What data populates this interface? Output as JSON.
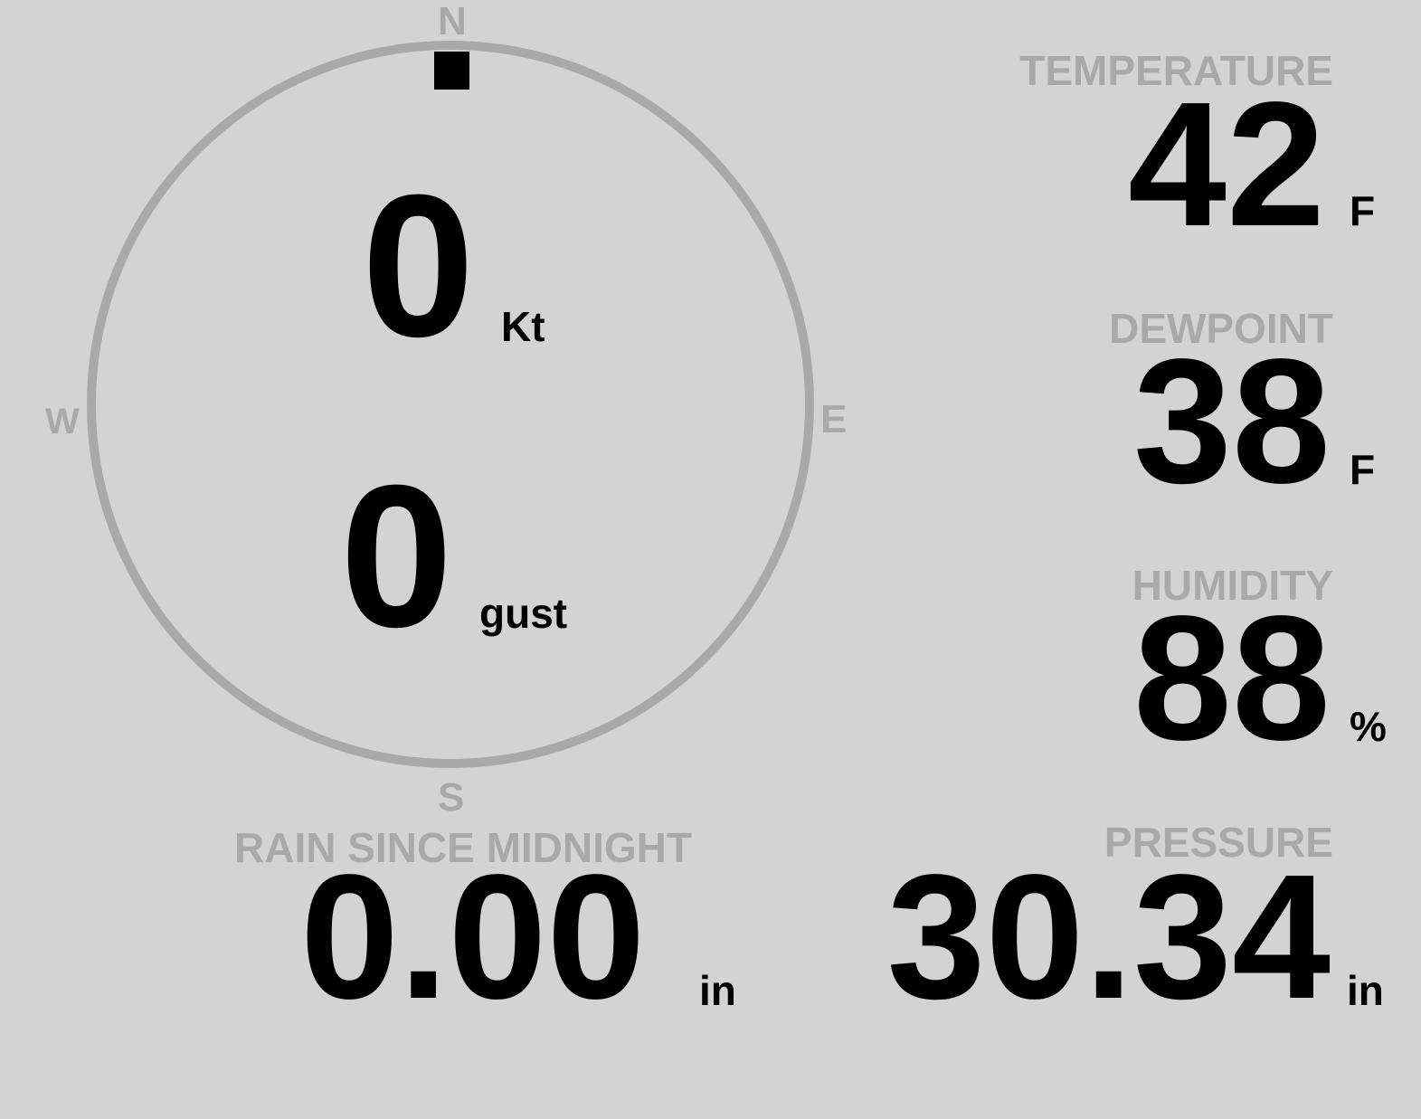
{
  "compass": {
    "north": "N",
    "south": "S",
    "east": "E",
    "west": "W",
    "direction_deg": 0,
    "ring_color": "#a9a9a9"
  },
  "wind": {
    "speed": "0",
    "speed_unit": "Kt",
    "gust": "0",
    "gust_unit": "gust"
  },
  "temperature": {
    "label": "TEMPERATURE",
    "value": "42",
    "unit": "F"
  },
  "dewpoint": {
    "label": "DEWPOINT",
    "value": "38",
    "unit": "F"
  },
  "humidity": {
    "label": "HUMIDITY",
    "value": "88",
    "unit": "%"
  },
  "rain": {
    "label": "RAIN SINCE MIDNIGHT",
    "value": "0.00",
    "unit": "in"
  },
  "pressure": {
    "label": "PRESSURE",
    "value": "30.34",
    "unit": "in"
  },
  "colors": {
    "background": "#d3d3d3",
    "label": "#a9a9a9",
    "value": "#000000"
  }
}
